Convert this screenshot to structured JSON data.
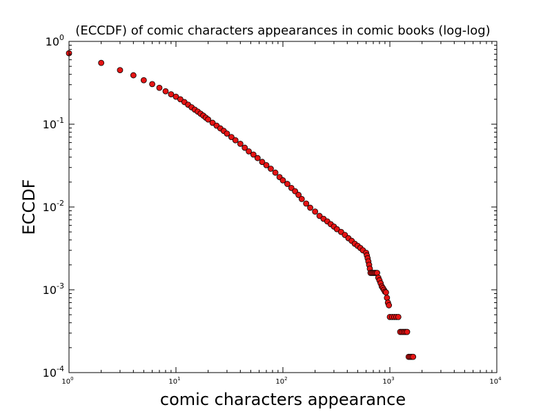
{
  "chart_data": {
    "type": "scatter",
    "title": "(ECCDF) of comic characters appearances in comic books (log-log)",
    "xlabel": "comic characters appearance",
    "ylabel": "ECCDF",
    "x_scale": "log",
    "y_scale": "log",
    "xlim": [
      1,
      10000
    ],
    "ylim": [
      0.0001,
      1
    ],
    "grid": false,
    "x_ticks": [
      {
        "value": 1,
        "base": "10",
        "exp": "0"
      },
      {
        "value": 10,
        "base": "10",
        "exp": "1"
      },
      {
        "value": 100,
        "base": "10",
        "exp": "2"
      },
      {
        "value": 1000,
        "base": "10",
        "exp": "3"
      },
      {
        "value": 10000,
        "base": "10",
        "exp": "4"
      }
    ],
    "y_ticks": [
      {
        "value": 1,
        "base": "10",
        "exp": "0"
      },
      {
        "value": 0.1,
        "base": "10",
        "exp": "-1"
      },
      {
        "value": 0.01,
        "base": "10",
        "exp": "-2"
      },
      {
        "value": 0.001,
        "base": "10",
        "exp": "-3"
      },
      {
        "value": 0.0001,
        "base": "10",
        "exp": "-4"
      }
    ],
    "marker_color": "#e41414",
    "marker_edge_color": "#000000",
    "series": [
      {
        "x": [
          1,
          2,
          3,
          4,
          5,
          6,
          7,
          8,
          9,
          10,
          11,
          12,
          13,
          14,
          15,
          16,
          17,
          18,
          19,
          20,
          22,
          24,
          26,
          28,
          30,
          33,
          36,
          40,
          44,
          48,
          53,
          58,
          64,
          70,
          77,
          85,
          93,
          100,
          110,
          120,
          130,
          140,
          150,
          165,
          180,
          200,
          220,
          240,
          260,
          280,
          300,
          320,
          350,
          380,
          410,
          440,
          470,
          500,
          530,
          560,
          600,
          610,
          620,
          630,
          640,
          650,
          660,
          680,
          700,
          720,
          740,
          760,
          780,
          800,
          820,
          840,
          860,
          880,
          900,
          920,
          940,
          960,
          980,
          1000,
          1050,
          1100,
          1150,
          1200,
          1250,
          1300,
          1350,
          1400,
          1450,
          1500,
          1550,
          1600,
          1650
        ],
        "y": [
          0.72,
          0.55,
          0.45,
          0.39,
          0.34,
          0.305,
          0.275,
          0.25,
          0.23,
          0.215,
          0.2,
          0.185,
          0.172,
          0.16,
          0.15,
          0.142,
          0.134,
          0.127,
          0.12,
          0.114,
          0.104,
          0.096,
          0.089,
          0.083,
          0.077,
          0.07,
          0.064,
          0.058,
          0.052,
          0.047,
          0.043,
          0.039,
          0.035,
          0.032,
          0.029,
          0.026,
          0.023,
          0.021,
          0.019,
          0.017,
          0.0155,
          0.014,
          0.0125,
          0.011,
          0.0098,
          0.0088,
          0.0078,
          0.0072,
          0.0067,
          0.0062,
          0.0058,
          0.0054,
          0.005,
          0.0046,
          0.0042,
          0.0039,
          0.0036,
          0.0034,
          0.0032,
          0.003,
          0.0028,
          0.0026,
          0.0024,
          0.0022,
          0.002,
          0.0018,
          0.0016,
          0.0016,
          0.0016,
          0.0016,
          0.0016,
          0.0016,
          0.0014,
          0.0013,
          0.0012,
          0.0011,
          0.00105,
          0.001,
          0.00095,
          0.00093,
          0.0008,
          0.0007,
          0.00065,
          0.00047,
          0.00047,
          0.00047,
          0.00047,
          0.00047,
          0.00031,
          0.00031,
          0.00031,
          0.00031,
          0.00031,
          0.000155,
          0.000155,
          0.000155,
          0.000155
        ]
      }
    ]
  }
}
